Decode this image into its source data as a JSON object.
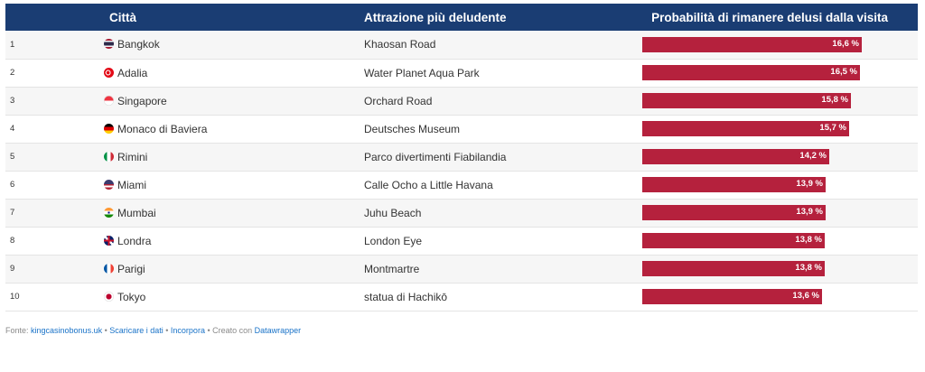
{
  "header": {
    "col_rank": "",
    "col_city": "Città",
    "col_attraction": "Attrazione più deludente",
    "col_probability": "Probabilità di rimanere delusi dalla visita"
  },
  "chart_data": {
    "type": "table",
    "columns": [
      "",
      "Città",
      "Attrazione più deludente",
      "Probabilità di rimanere delusi dalla visita"
    ],
    "value_max": 20,
    "rows": [
      {
        "rank": "1",
        "city": "Bangkok",
        "attraction": "Khaosan Road",
        "value": 16.6,
        "label": "16,6 %",
        "flag": "thailand-flag-icon"
      },
      {
        "rank": "2",
        "city": "Adalia",
        "attraction": "Water Planet Aqua Park",
        "value": 16.5,
        "label": "16,5 %",
        "flag": "turkey-flag-icon"
      },
      {
        "rank": "3",
        "city": "Singapore",
        "attraction": "Orchard Road",
        "value": 15.8,
        "label": "15,8 %",
        "flag": "singapore-flag-icon"
      },
      {
        "rank": "4",
        "city": "Monaco di Baviera",
        "attraction": "Deutsches Museum",
        "value": 15.7,
        "label": "15,7 %",
        "flag": "germany-flag-icon"
      },
      {
        "rank": "5",
        "city": "Rimini",
        "attraction": "Parco divertimenti Fiabilandia",
        "value": 14.2,
        "label": "14,2 %",
        "flag": "italy-flag-icon"
      },
      {
        "rank": "6",
        "city": "Miami",
        "attraction": "Calle Ocho a Little Havana",
        "value": 13.9,
        "label": "13,9 %",
        "flag": "usa-flag-icon"
      },
      {
        "rank": "7",
        "city": "Mumbai",
        "attraction": "Juhu Beach",
        "value": 13.9,
        "label": "13,9 %",
        "flag": "india-flag-icon"
      },
      {
        "rank": "8",
        "city": "Londra",
        "attraction": "London Eye",
        "value": 13.8,
        "label": "13,8 %",
        "flag": "uk-flag-icon"
      },
      {
        "rank": "9",
        "city": "Parigi",
        "attraction": "Montmartre",
        "value": 13.8,
        "label": "13,8 %",
        "flag": "france-flag-icon"
      },
      {
        "rank": "10",
        "city": "Tokyo",
        "attraction": "statua di Hachikō",
        "value": 13.6,
        "label": "13,6 %",
        "flag": "japan-flag-icon"
      }
    ],
    "bar_color": "#b5213d",
    "header_color": "#1a3d73"
  },
  "footer": {
    "prefix": "Fonte: ",
    "source_link": "kingcasinobonus.uk",
    "sep1": " • ",
    "download_link": "Scaricare i dati",
    "sep2": " • ",
    "embed_link": "Incorpora",
    "sep3": " • Creato con ",
    "dw_link": "Datawrapper"
  }
}
